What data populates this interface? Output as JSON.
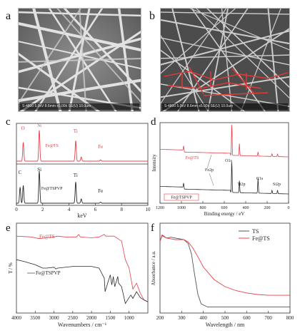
{
  "panels": {
    "a": {
      "letter": "a",
      "label": "a",
      "scalebar_text": "S-4800 5.0kV 8.6mm x5.00k SE(U) 10.0um"
    },
    "b": {
      "letter": "b",
      "label": "b",
      "scalebar_text": "S-4800 5.0kV 8.6mm x5.00k SE(U) 10.0um"
    },
    "c": {
      "letter": "c"
    },
    "d": {
      "letter": "d"
    },
    "e": {
      "letter": "e"
    },
    "f": {
      "letter": "f"
    }
  },
  "chart_data": [
    {
      "panel": "c",
      "type": "line",
      "xlabel": "keV",
      "xlim": [
        0,
        10
      ],
      "xticks": [
        0,
        2,
        4,
        6,
        8,
        10
      ],
      "colors": {
        "top": "#e8404a",
        "bottom": "#2a2a2a"
      },
      "top_labels": [
        {
          "text": "O",
          "x": 0.5
        },
        {
          "text": "Si",
          "x": 1.75
        },
        {
          "text": "Ti",
          "x": 4.5
        },
        {
          "text": "Fe@TS",
          "x": 2.7
        },
        {
          "text": "Fe",
          "x": 6.4
        }
      ],
      "bottom_labels": [
        {
          "text": "C",
          "x": 0.27
        },
        {
          "text": "Si",
          "x": 1.75
        },
        {
          "text": "Ti",
          "x": 4.5
        },
        {
          "text": "Fe@TSPVP",
          "x": 2.7
        },
        {
          "text": "Fe",
          "x": 6.4
        }
      ],
      "series": [
        {
          "peaks": [
            {
              "x": 0.52,
              "h": 0.55
            },
            {
              "x": 1.74,
              "h": 0.9
            },
            {
              "x": 4.51,
              "h": 0.6
            },
            {
              "x": 4.93,
              "h": 0.12
            },
            {
              "x": 6.4,
              "h": 0.04
            }
          ]
        },
        {
          "peaks": [
            {
              "x": 0.28,
              "h": 0.45
            },
            {
              "x": 0.52,
              "h": 0.5
            },
            {
              "x": 1.74,
              "h": 0.9
            },
            {
              "x": 4.51,
              "h": 0.6
            },
            {
              "x": 4.93,
              "h": 0.12
            },
            {
              "x": 6.4,
              "h": 0.03
            }
          ]
        }
      ]
    },
    {
      "panel": "d",
      "type": "line",
      "xlabel": "Binding energy / eV",
      "ylabel": "Intensity",
      "xlim": [
        1200,
        0
      ],
      "xticks": [
        1200,
        1000,
        800,
        600,
        400,
        200,
        0
      ],
      "colors": {
        "top": "#e8404a",
        "bottom": "#2a2a2a"
      },
      "annotations": [
        {
          "text": "O1s",
          "x": 560
        },
        {
          "text": "Fe@TS",
          "x": 900
        },
        {
          "text": "Fe2p",
          "x": 740
        },
        {
          "text": "Ti2p",
          "x": 440
        },
        {
          "text": "C1s",
          "x": 270
        },
        {
          "text": "Si2p",
          "x": 110
        }
      ],
      "legend": "Fe@TSPVP",
      "series": [
        {
          "name": "Fe@TS",
          "peaks": [
            {
              "x": 979,
              "h": 0.15
            },
            {
              "x": 530,
              "h": 0.95
            },
            {
              "x": 459,
              "h": 0.35
            },
            {
              "x": 285,
              "h": 0.12
            },
            {
              "x": 155,
              "h": 0.08
            },
            {
              "x": 103,
              "h": 0.08
            }
          ]
        },
        {
          "name": "Fe@TSPVP",
          "peaks": [
            {
              "x": 979,
              "h": 0.15
            },
            {
              "x": 530,
              "h": 0.95
            },
            {
              "x": 459,
              "h": 0.35
            },
            {
              "x": 285,
              "h": 0.45
            },
            {
              "x": 155,
              "h": 0.1
            },
            {
              "x": 103,
              "h": 0.1
            }
          ]
        }
      ]
    },
    {
      "panel": "e",
      "type": "line",
      "xlabel": "Wavenumbers / cm⁻¹",
      "ylabel": "T / %",
      "xlim": [
        4000,
        500
      ],
      "xticks": [
        4000,
        3500,
        3000,
        2500,
        2000,
        1500,
        1000
      ],
      "colors": {
        "Fe@TS": "#e8404a",
        "Fe@TSPVP": "#2a2a2a"
      },
      "series": [
        {
          "name": "Fe@TS",
          "x": [
            4000,
            3600,
            3400,
            3200,
            3000,
            2900,
            2700,
            2400,
            2340,
            2300,
            2000,
            1800,
            1660,
            1620,
            1400,
            1200,
            1100,
            1000,
            950,
            900,
            800,
            700,
            600,
            500
          ],
          "y": [
            0.12,
            0.13,
            0.15,
            0.14,
            0.13,
            0.12,
            0.13,
            0.13,
            0.1,
            0.13,
            0.14,
            0.13,
            0.1,
            0.12,
            0.12,
            0.18,
            0.4,
            0.5,
            0.62,
            0.75,
            0.68,
            0.8,
            0.88,
            0.9
          ]
        },
        {
          "name": "Fe@TSPVP",
          "x": [
            4000,
            3800,
            3500,
            3300,
            3200,
            3000,
            2950,
            2900,
            2500,
            2000,
            1800,
            1660,
            1640,
            1500,
            1460,
            1420,
            1380,
            1300,
            1280,
            1200,
            1100,
            1000,
            950,
            900,
            800,
            700,
            600,
            500
          ],
          "y": [
            0.4,
            0.42,
            0.46,
            0.5,
            0.5,
            0.49,
            0.51,
            0.5,
            0.48,
            0.48,
            0.5,
            0.62,
            0.78,
            0.58,
            0.7,
            0.6,
            0.72,
            0.6,
            0.68,
            0.72,
            0.92,
            0.85,
            0.82,
            0.86,
            0.78,
            0.85,
            0.88,
            0.9
          ]
        }
      ]
    },
    {
      "panel": "f",
      "type": "line",
      "xlabel": "Wavelength / nm",
      "ylabel": "Absorbance / a.u.",
      "xlim": [
        200,
        800
      ],
      "xticks": [
        200,
        300,
        400,
        500,
        600,
        700,
        800
      ],
      "legend": [
        {
          "name": "TS",
          "color": "#555555"
        },
        {
          "name": "Fe@TS",
          "color": "#e8404a"
        }
      ],
      "series": [
        {
          "name": "TS",
          "x": [
            200,
            210,
            230,
            250,
            270,
            290,
            310,
            330,
            345,
            360,
            375,
            390,
            420,
            500,
            600,
            700,
            800
          ],
          "y": [
            0.88,
            0.95,
            0.92,
            0.93,
            0.92,
            0.91,
            0.9,
            0.85,
            0.72,
            0.45,
            0.2,
            0.08,
            0.04,
            0.04,
            0.04,
            0.04,
            0.04
          ]
        },
        {
          "name": "Fe@TS",
          "x": [
            200,
            210,
            230,
            250,
            270,
            290,
            310,
            330,
            350,
            375,
            400,
            450,
            500,
            550,
            600,
            650,
            700,
            750,
            800
          ],
          "y": [
            0.88,
            0.96,
            0.92,
            0.91,
            0.9,
            0.9,
            0.9,
            0.87,
            0.8,
            0.68,
            0.55,
            0.39,
            0.3,
            0.25,
            0.22,
            0.2,
            0.19,
            0.19,
            0.19
          ]
        }
      ]
    }
  ]
}
